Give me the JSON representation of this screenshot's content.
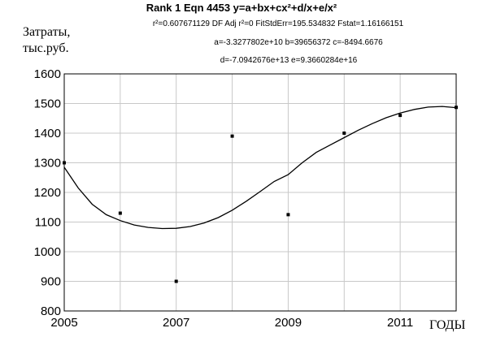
{
  "header": {
    "title": "Rank 1  Eqn 4453  y=a+bx+cx²+d/x+e/x²",
    "stats_line": "r²=0.607671129  DF Adj r²=0  FitStdErr=195.534832  Fstat=1.16166151",
    "params_line": "a=-3.3277802e+10 b=39656372 c=-8494.6676",
    "params_line2": "d=-7.0942676e+13 e=9.3660284e+16"
  },
  "chart_data": {
    "type": "scatter",
    "title": "Rank 1  Eqn 4453  y=a+bx+cx²+d/x+e/x²",
    "ylabel_line1": "Затраты,",
    "ylabel_line2": "тыс.руб.",
    "xlabel": "ГОДЫ",
    "xlim": [
      2005,
      2012
    ],
    "ylim": [
      800,
      1600
    ],
    "x_ticks": [
      2005,
      2007,
      2009,
      2011
    ],
    "y_ticks": [
      800,
      900,
      1000,
      1100,
      1200,
      1300,
      1400,
      1500,
      1600
    ],
    "grid": true,
    "series": [
      {
        "x": [
          2005,
          2006,
          2007,
          2008,
          2009,
          2010,
          2011,
          2012
        ],
        "y": [
          1300,
          1130,
          900,
          1390,
          1125,
          1400,
          1460,
          1487
        ]
      }
    ],
    "fit_curve": {
      "x": [
        2005,
        2005.25,
        2005.5,
        2005.75,
        2006,
        2006.25,
        2006.5,
        2006.75,
        2007,
        2007.25,
        2007.5,
        2007.75,
        2008,
        2008.25,
        2008.5,
        2008.75,
        2009,
        2009.25,
        2009.5,
        2009.75,
        2010,
        2010.25,
        2010.5,
        2010.75,
        2011,
        2011.25,
        2011.5,
        2011.75,
        2012
      ],
      "y": [
        1285,
        1215,
        1160,
        1125,
        1105,
        1090,
        1082,
        1078,
        1079,
        1085,
        1097,
        1115,
        1140,
        1170,
        1203,
        1237,
        1260,
        1300,
        1335,
        1360,
        1385,
        1410,
        1432,
        1452,
        1468,
        1480,
        1488,
        1490,
        1486
      ]
    }
  }
}
